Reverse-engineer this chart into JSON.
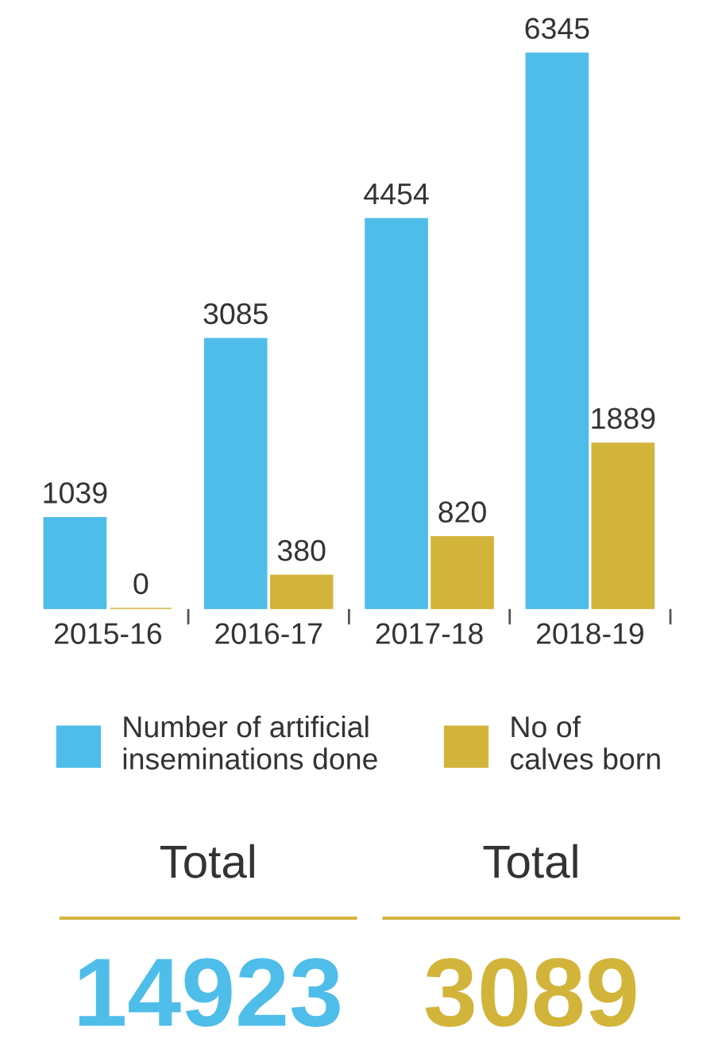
{
  "chart_data": {
    "type": "bar",
    "categories": [
      "2015-16",
      "2016-17",
      "2017-18",
      "2018-19"
    ],
    "series": [
      {
        "name": "Number of artificial\ninseminations done",
        "color": "#4fbde9",
        "values": [
          1039,
          3085,
          4454,
          6345
        ]
      },
      {
        "name": "No of\ncalves born",
        "color": "#d3b43b",
        "values": [
          0,
          380,
          820,
          1889
        ]
      }
    ],
    "data_labels": true,
    "legend": "bottom",
    "grid": false,
    "tick_labels": "x",
    "annotations": [
      "Total",
      "14923",
      "Total",
      "3089"
    ]
  }
}
